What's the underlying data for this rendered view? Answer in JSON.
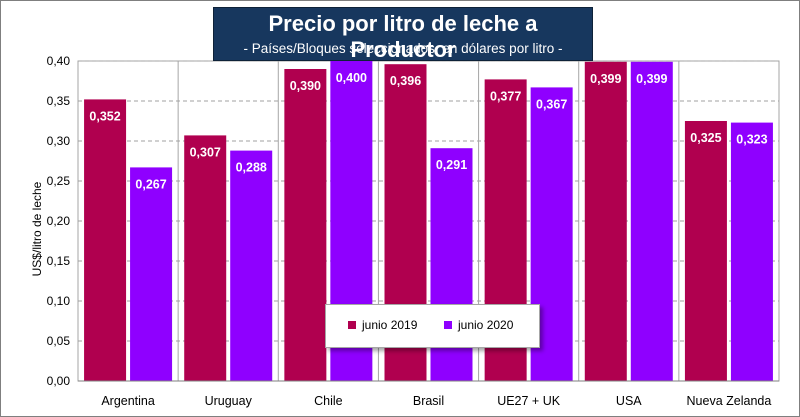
{
  "chart_data": {
    "type": "bar",
    "title": "Precio por litro de leche a Productor",
    "subtitle": "- Países/Bloques seleccionados, en dólares por litro -",
    "xlabel": "",
    "ylabel": "US$/litro de leche",
    "ylim": [
      0,
      0.4
    ],
    "yticks": [
      "0,00",
      "0,05",
      "0,10",
      "0,15",
      "0,20",
      "0,25",
      "0,30",
      "0,35",
      "0,40"
    ],
    "grid": true,
    "legend_position": "bottom-center",
    "categories": [
      "Argentina",
      "Uruguay",
      "Chile",
      "Brasil",
      "UE27 + UK",
      "USA",
      "Nueva Zelanda"
    ],
    "series": [
      {
        "name": "junio 2019",
        "color": "#b0004f",
        "values": [
          0.352,
          0.307,
          0.39,
          0.396,
          0.377,
          0.399,
          0.325
        ],
        "labels": [
          "0,352",
          "0,307",
          "0,390",
          "0,396",
          "0,377",
          "0,399",
          "0,325"
        ]
      },
      {
        "name": "junio 2020",
        "color": "#8f00ff",
        "values": [
          0.267,
          0.288,
          0.4,
          0.291,
          0.367,
          0.399,
          0.323
        ],
        "labels": [
          "0,267",
          "0,288",
          "0,400",
          "0,291",
          "0,367",
          "0,399",
          "0,323"
        ]
      }
    ]
  }
}
